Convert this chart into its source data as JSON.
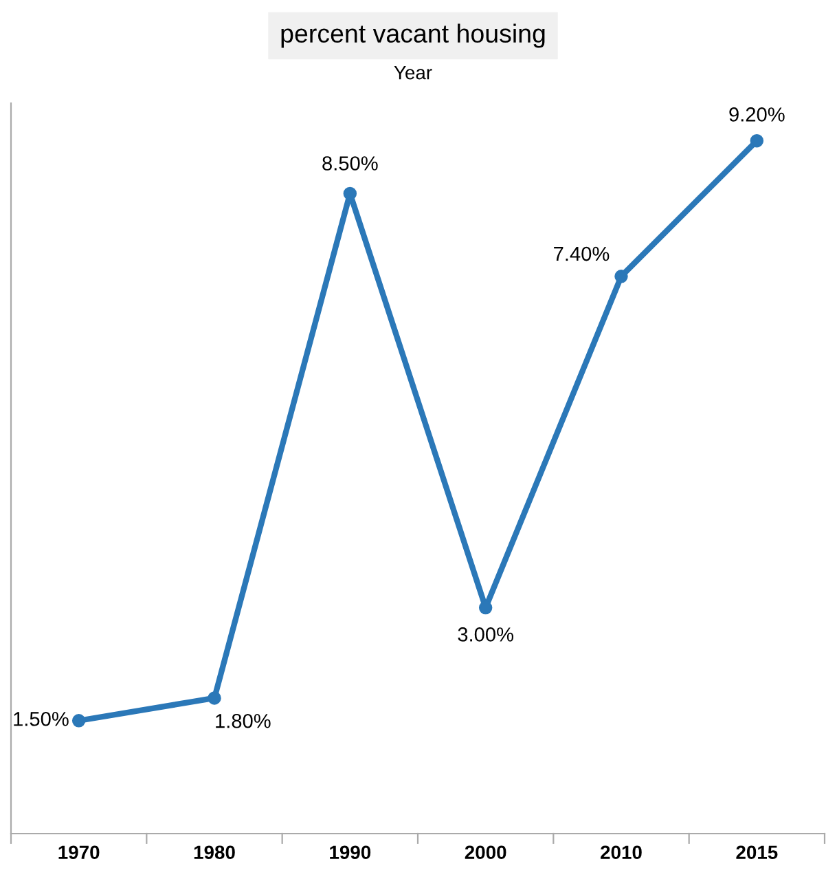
{
  "chart_data": {
    "type": "line",
    "title": "percent vacant housing",
    "xlabel": "Year",
    "categories": [
      "1970",
      "1980",
      "1990",
      "2000",
      "2010",
      "2015"
    ],
    "values": [
      1.5,
      1.8,
      8.5,
      3.0,
      7.4,
      9.2
    ],
    "value_labels": [
      "1.50%",
      "1.80%",
      "8.50%",
      "3.00%",
      "7.40%",
      "9.20%"
    ],
    "color": "#2b78b8",
    "marker": "circle",
    "line_style": "solid",
    "grid": false,
    "legend": false,
    "ylim": [
      0,
      9.7
    ],
    "tick_labels": "x"
  }
}
